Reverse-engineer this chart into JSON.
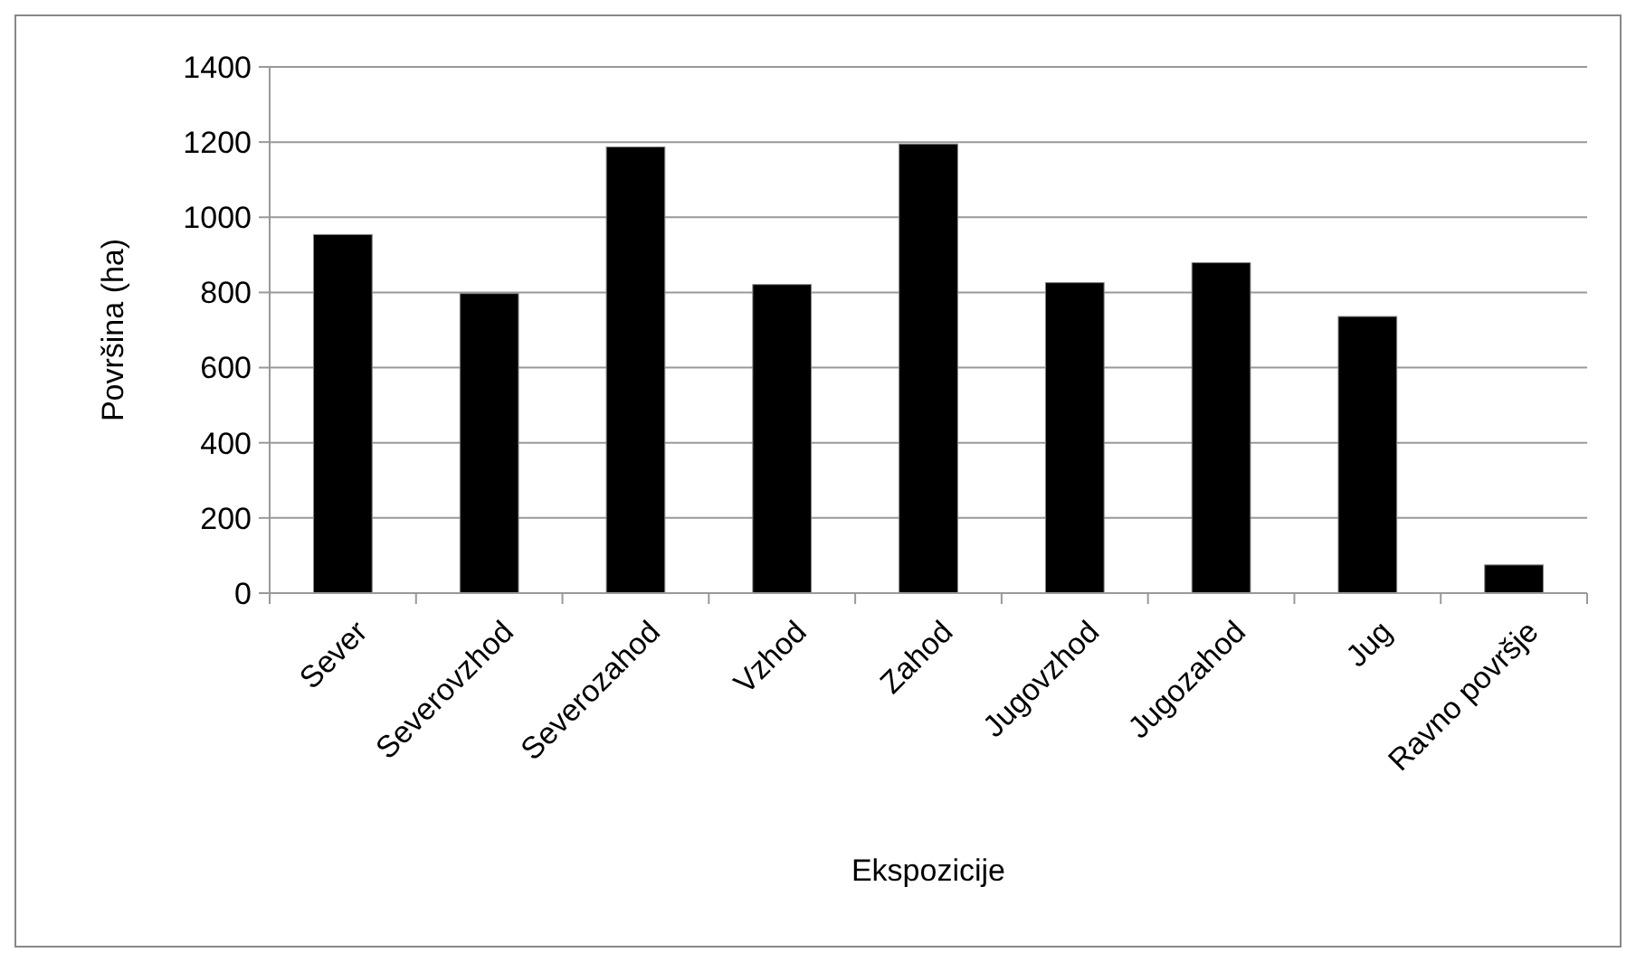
{
  "chart_data": {
    "type": "bar",
    "xlabel": "Ekspozicije",
    "ylabel": "Površina (ha)",
    "categories": [
      "Sever",
      "Severovzhod",
      "Severozahod",
      "Vzhod",
      "Zahod",
      "Jugovzhod",
      "Jugozahod",
      "Jug",
      "Ravno površje"
    ],
    "values": [
      954,
      797,
      1187,
      821,
      1195,
      826,
      879,
      736,
      75
    ],
    "color": "#000000",
    "ylim": [
      0,
      1400
    ],
    "yticks": [
      0,
      200,
      400,
      600,
      800,
      1000,
      1200,
      1400
    ],
    "grid": "y"
  }
}
